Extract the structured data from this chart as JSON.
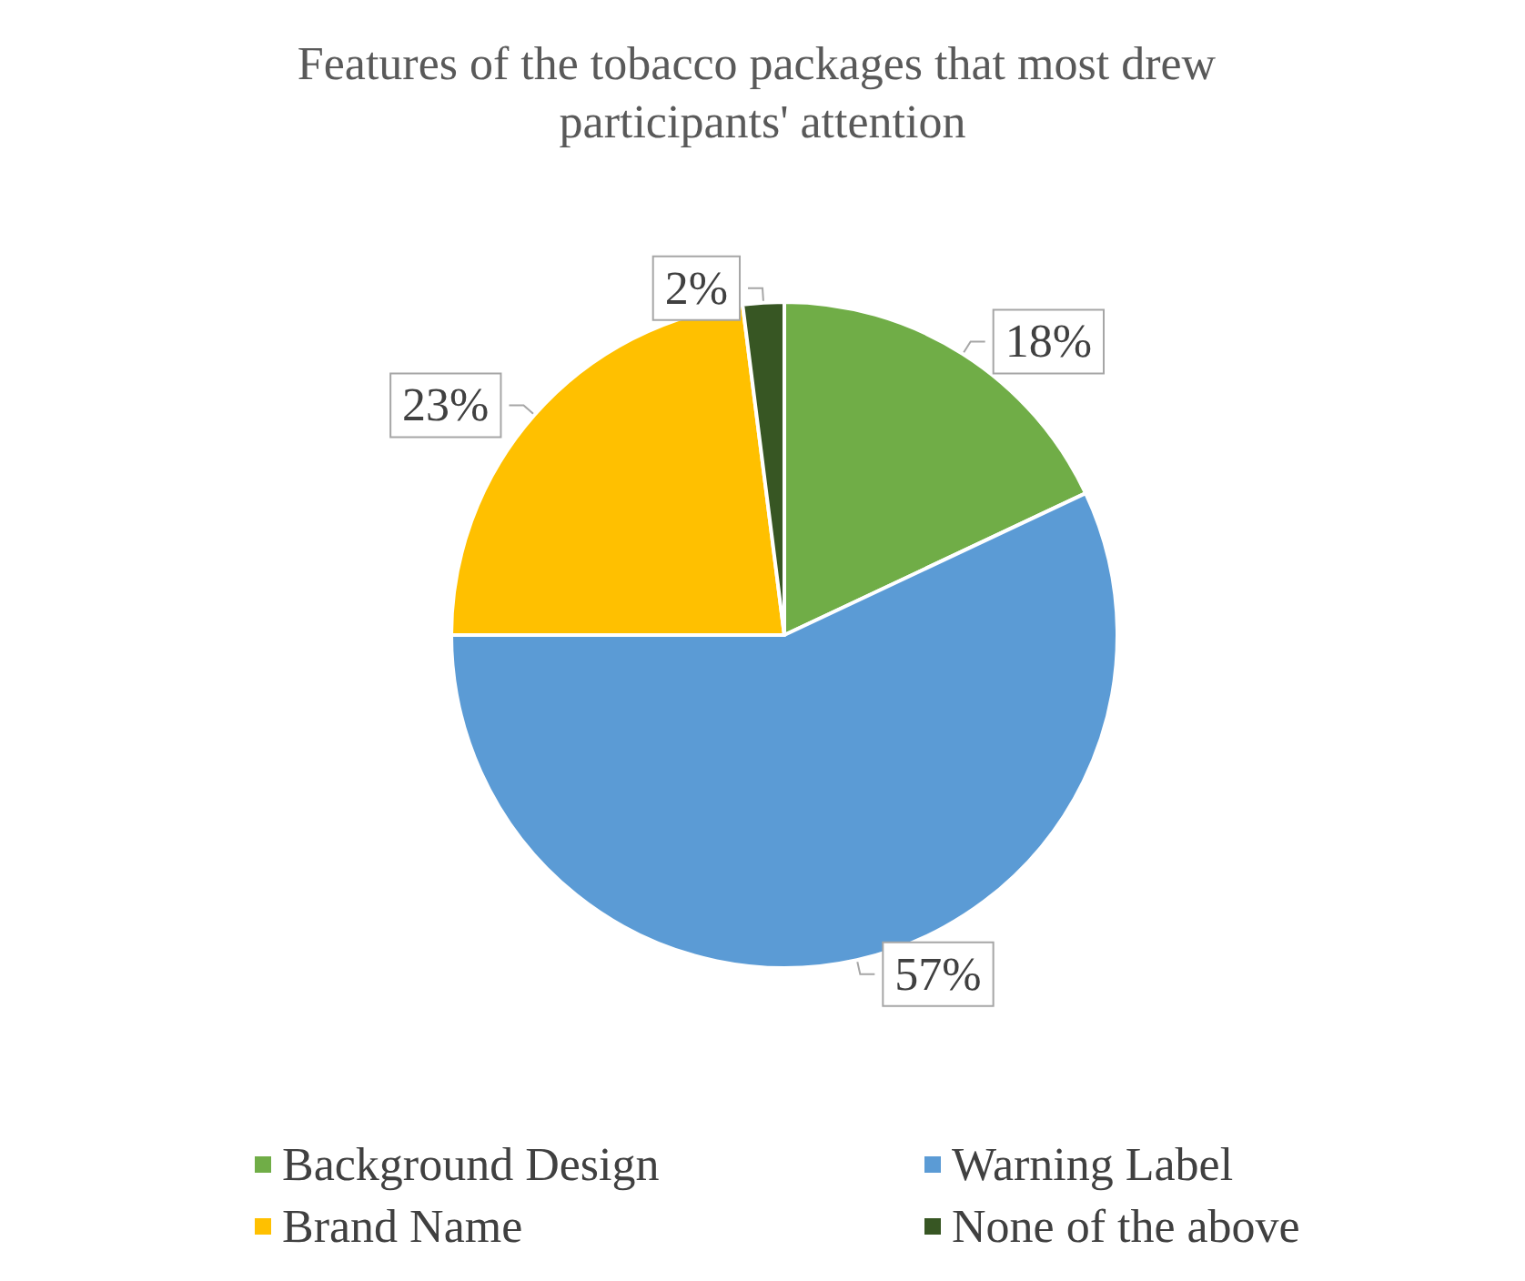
{
  "chart_data": {
    "type": "pie",
    "title": "Features of the tobacco packages that most drew participants' attention",
    "categories": [
      "Background Design",
      "Warning Label",
      "Brand Name",
      "None of the above"
    ],
    "values": [
      18,
      57,
      23,
      2
    ],
    "value_labels": [
      "18%",
      "57%",
      "23%",
      "2%"
    ],
    "colors": [
      "#70ad47",
      "#5b9bd5",
      "#ffc000",
      "#375623"
    ],
    "legend": "bottom"
  }
}
